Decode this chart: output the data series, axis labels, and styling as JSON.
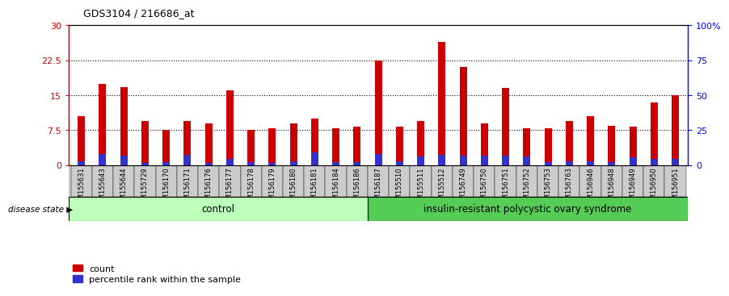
{
  "title": "GDS3104 / 216686_at",
  "categories": [
    "GSM155631",
    "GSM155643",
    "GSM155644",
    "GSM155729",
    "GSM156170",
    "GSM156171",
    "GSM156176",
    "GSM156177",
    "GSM156178",
    "GSM156179",
    "GSM156180",
    "GSM156181",
    "GSM156184",
    "GSM156186",
    "GSM156187",
    "GSM155510",
    "GSM155511",
    "GSM155512",
    "GSM156749",
    "GSM156750",
    "GSM156751",
    "GSM156752",
    "GSM156753",
    "GSM156763",
    "GSM156946",
    "GSM156948",
    "GSM156949",
    "GSM156950",
    "GSM156951"
  ],
  "count_values": [
    10.5,
    17.5,
    16.7,
    9.5,
    7.5,
    9.5,
    9.0,
    16.0,
    7.5,
    8.0,
    9.0,
    10.0,
    8.0,
    8.3,
    22.5,
    8.3,
    9.5,
    26.5,
    21.0,
    9.0,
    16.5,
    8.0,
    8.0,
    9.5,
    10.5,
    8.5,
    8.3,
    13.5,
    15.0
  ],
  "percentile_values": [
    0.8,
    2.3,
    2.0,
    0.5,
    0.7,
    2.2,
    0.5,
    1.4,
    0.6,
    0.5,
    0.8,
    2.7,
    0.6,
    0.6,
    2.3,
    0.8,
    1.9,
    2.2,
    2.0,
    2.0,
    2.0,
    1.9,
    0.6,
    0.8,
    0.8,
    0.6,
    1.7,
    1.3,
    1.3
  ],
  "n_control": 14,
  "control_label": "control",
  "disease_label": "insulin-resistant polycystic ovary syndrome",
  "ylim_left": [
    0,
    30
  ],
  "ylim_right": [
    0,
    100
  ],
  "yticks_left": [
    0,
    7.5,
    15,
    22.5,
    30
  ],
  "ytick_labels_left": [
    "0",
    "7.5",
    "15",
    "22.5",
    "30"
  ],
  "yticks_right": [
    0,
    25,
    50,
    75,
    100
  ],
  "ytick_labels_right": [
    "0",
    "25",
    "50",
    "75",
    "100%"
  ],
  "bar_color_red": "#CC0000",
  "bar_color_blue": "#3333CC",
  "control_bg": "#BBFFBB",
  "disease_bg": "#55CC55",
  "bar_width": 0.35,
  "plot_bg": "#FFFFFF",
  "xlabel_bg": "#CCCCCC",
  "disease_state_label": "disease state",
  "legend_count": "count",
  "legend_pct": "percentile rank within the sample",
  "title_fontsize": 9
}
